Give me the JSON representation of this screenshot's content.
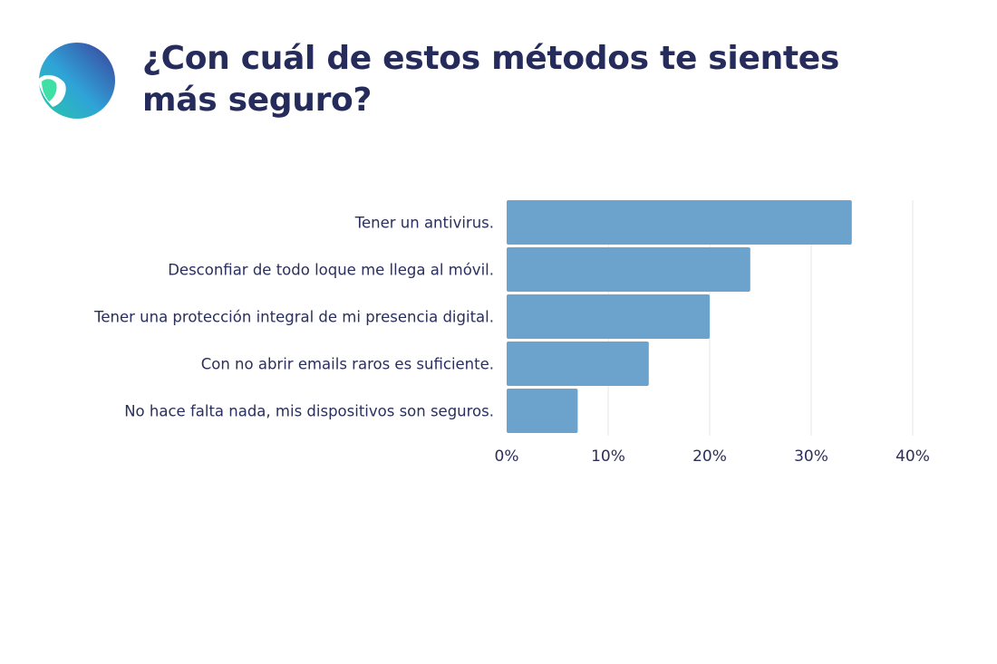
{
  "header": {
    "title": "¿Con cuál de estos métodos te sientes más seguro?",
    "logo_icon": "brand-logo-icon"
  },
  "colors": {
    "bar": "#6ba3cd",
    "title": "#252b5a",
    "grid": "#e6e6e6",
    "logo_gradient": [
      "#27c9a6",
      "#2fa3d8",
      "#3b3f9a"
    ]
  },
  "chart_data": {
    "type": "bar",
    "orientation": "horizontal",
    "categories": [
      "Tener un antivirus.",
      "Desconfiar de todo loque me llega al móvil.",
      "Tener una protección integral de mi presencia digital.",
      "Con no abrir emails raros es suficiente.",
      "No hace falta nada, mis dispositivos son seguros."
    ],
    "values": [
      34,
      24,
      20,
      14,
      7
    ],
    "value_unit": "%",
    "xlim": [
      0,
      40
    ],
    "xticks": [
      0,
      10,
      20,
      30,
      40
    ],
    "xtick_labels": [
      "0%",
      "10%",
      "20%",
      "30%",
      "40%"
    ],
    "grid": true,
    "legend": "none"
  }
}
